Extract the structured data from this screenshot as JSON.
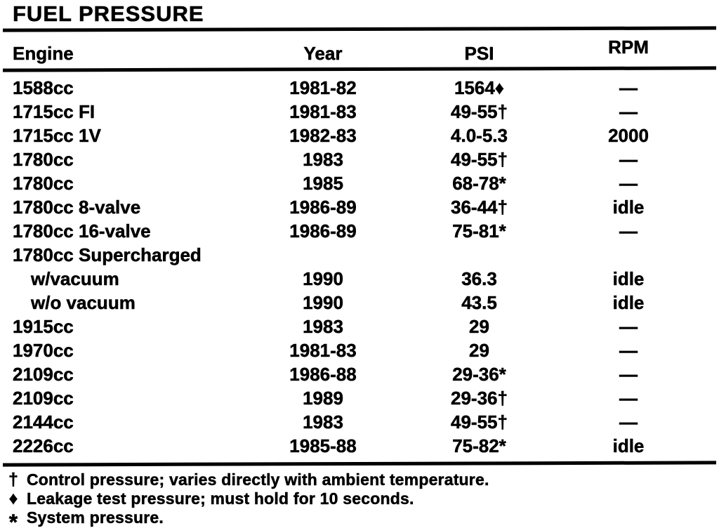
{
  "title": "FUEL PRESSURE",
  "colors": {
    "ink": "#000000",
    "paper": "#ffffff"
  },
  "table": {
    "columns": {
      "engine": "Engine",
      "year": "Year",
      "psi": "PSI",
      "rpm": "RPM"
    },
    "rows": [
      {
        "engine": "1588cc",
        "year": "1981-82",
        "psi": "1564♦",
        "rpm": "—",
        "indent": false
      },
      {
        "engine": "1715cc FI",
        "year": "1981-83",
        "psi": "49-55†",
        "rpm": "—",
        "indent": false
      },
      {
        "engine": "1715cc 1V",
        "year": "1982-83",
        "psi": "4.0-5.3",
        "rpm": "2000",
        "indent": false
      },
      {
        "engine": "1780cc",
        "year": "1983",
        "psi": "49-55†",
        "rpm": "—",
        "indent": false
      },
      {
        "engine": "1780cc",
        "year": "1985",
        "psi": "68-78*",
        "rpm": "—",
        "indent": false
      },
      {
        "engine": "1780cc 8-valve",
        "year": "1986-89",
        "psi": "36-44†",
        "rpm": "idle",
        "indent": false
      },
      {
        "engine": "1780cc 16-valve",
        "year": "1986-89",
        "psi": "75-81*",
        "rpm": "—",
        "indent": false
      },
      {
        "engine": "1780cc Supercharged",
        "year": "",
        "psi": "",
        "rpm": "",
        "indent": false
      },
      {
        "engine": "w/vacuum",
        "year": "1990",
        "psi": "36.3",
        "rpm": "idle",
        "indent": true
      },
      {
        "engine": "w/o vacuum",
        "year": "1990",
        "psi": "43.5",
        "rpm": "idle",
        "indent": true
      },
      {
        "engine": "1915cc",
        "year": "1983",
        "psi": "29",
        "rpm": "—",
        "indent": false
      },
      {
        "engine": "1970cc",
        "year": "1981-83",
        "psi": "29",
        "rpm": "—",
        "indent": false
      },
      {
        "engine": "2109cc",
        "year": "1986-88",
        "psi": "29-36*",
        "rpm": "—",
        "indent": false
      },
      {
        "engine": "2109cc",
        "year": "1989",
        "psi": "29-36†",
        "rpm": "—",
        "indent": false
      },
      {
        "engine": "2144cc",
        "year": "1983",
        "psi": "49-55†",
        "rpm": "—",
        "indent": false
      },
      {
        "engine": "2226cc",
        "year": "1985-88",
        "psi": "75-82*",
        "rpm": "idle",
        "indent": false
      }
    ]
  },
  "footnotes": [
    {
      "symbol": "†",
      "text": "Control pressure; varies directly with ambient temperature."
    },
    {
      "symbol": "♦",
      "text": "Leakage test pressure; must hold for 10 seconds."
    },
    {
      "symbol": "*",
      "text": "System pressure."
    }
  ]
}
